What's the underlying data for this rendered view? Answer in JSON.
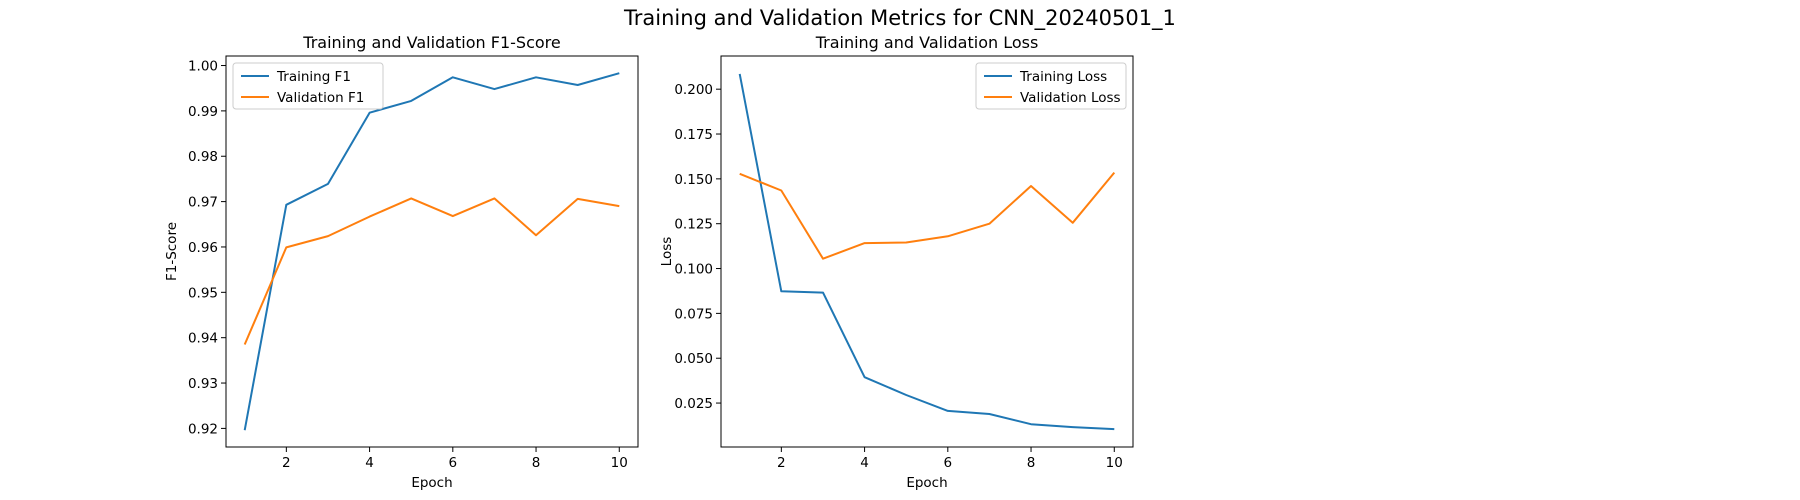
{
  "figure": {
    "suptitle": "Training and Validation Metrics for CNN_20240501_1"
  },
  "colors": {
    "training": "#1f77b4",
    "validation": "#ff7f0e"
  },
  "chart_data": [
    {
      "type": "line",
      "title": "Training and Validation F1-Score",
      "xlabel": "Epoch",
      "ylabel": "F1-Score",
      "xlim": [
        0.55,
        10.45
      ],
      "ylim": [
        0.9159,
        1.0021
      ],
      "xticks": [
        2,
        4,
        6,
        8,
        10
      ],
      "yticks": [
        0.92,
        0.93,
        0.94,
        0.95,
        0.96,
        0.97,
        0.98,
        0.99,
        1.0
      ],
      "ytick_labels": [
        "0.92",
        "0.93",
        "0.94",
        "0.95",
        "0.96",
        "0.97",
        "0.98",
        "0.99",
        "1.00"
      ],
      "legend_position": "upper-left",
      "grid": false,
      "x": [
        1,
        2,
        3,
        4,
        5,
        6,
        7,
        8,
        9,
        10
      ],
      "series": [
        {
          "name": "Training F1",
          "color": "#1f77b4",
          "values": [
            0.9196,
            0.9693,
            0.9739,
            0.9896,
            0.9922,
            0.9974,
            0.9948,
            0.9974,
            0.9957,
            0.9983
          ]
        },
        {
          "name": "Validation F1",
          "color": "#ff7f0e",
          "values": [
            0.9385,
            0.9599,
            0.9624,
            0.9667,
            0.9707,
            0.9668,
            0.9707,
            0.9626,
            0.9706,
            0.969
          ]
        }
      ]
    },
    {
      "type": "line",
      "title": "Training and Validation Loss",
      "xlabel": "Epoch",
      "ylabel": "Loss",
      "xlim": [
        0.55,
        10.45
      ],
      "ylim": [
        0.0005,
        0.2185
      ],
      "xticks": [
        2,
        4,
        6,
        8,
        10
      ],
      "yticks": [
        0.025,
        0.05,
        0.075,
        0.1,
        0.125,
        0.15,
        0.175,
        0.2
      ],
      "ytick_labels": [
        "0.025",
        "0.050",
        "0.075",
        "0.100",
        "0.125",
        "0.150",
        "0.175",
        "0.200"
      ],
      "legend_position": "upper-right",
      "grid": false,
      "x": [
        1,
        2,
        3,
        4,
        5,
        6,
        7,
        8,
        9,
        10
      ],
      "series": [
        {
          "name": "Training Loss",
          "color": "#1f77b4",
          "values": [
            0.2085,
            0.0873,
            0.0866,
            0.0394,
            0.0295,
            0.0206,
            0.0189,
            0.0132,
            0.0116,
            0.0105
          ]
        },
        {
          "name": "Validation Loss",
          "color": "#ff7f0e",
          "values": [
            0.1528,
            0.1435,
            0.1055,
            0.1142,
            0.1145,
            0.118,
            0.125,
            0.146,
            0.1255,
            0.1535
          ]
        }
      ]
    }
  ]
}
